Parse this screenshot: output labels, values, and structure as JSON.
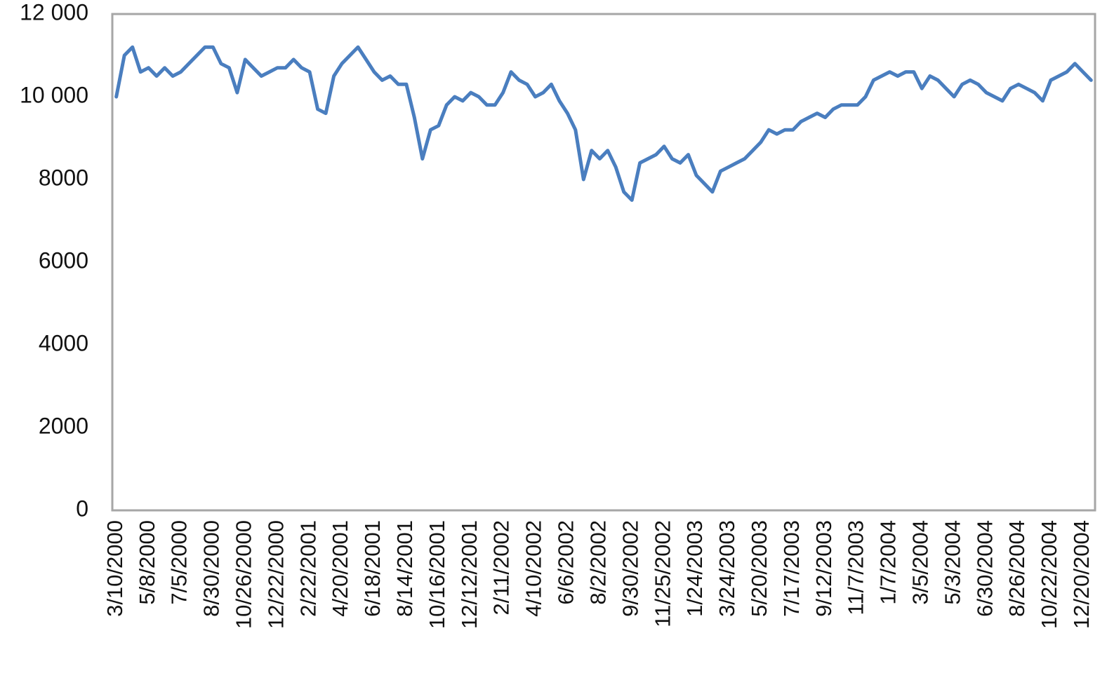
{
  "chart_data": {
    "type": "line",
    "categories": [
      "3/10/2000",
      null,
      null,
      null,
      "5/8/2000",
      null,
      null,
      null,
      "7/5/2000",
      null,
      null,
      null,
      "8/30/2000",
      null,
      null,
      null,
      "10/26/2000",
      null,
      null,
      null,
      "12/22/2000",
      null,
      null,
      null,
      "2/22/2001",
      null,
      null,
      null,
      "4/20/2001",
      null,
      null,
      null,
      "6/18/2001",
      null,
      null,
      null,
      "8/14/2001",
      null,
      null,
      null,
      "10/16/2001",
      null,
      null,
      null,
      "12/12/2001",
      null,
      null,
      null,
      "2/11/2002",
      null,
      null,
      null,
      "4/10/2002",
      null,
      null,
      null,
      "6/6/2002",
      null,
      null,
      null,
      "8/2/2002",
      null,
      null,
      null,
      "9/30/2002",
      null,
      null,
      null,
      "11/25/2002",
      null,
      null,
      null,
      "1/24/2003",
      null,
      null,
      null,
      "3/24/2003",
      null,
      null,
      null,
      "5/20/2003",
      null,
      null,
      null,
      "7/17/2003",
      null,
      null,
      null,
      "9/12/2003",
      null,
      null,
      null,
      "11/7/2003",
      null,
      null,
      null,
      "1/7/2004",
      null,
      null,
      null,
      "3/5/2004",
      null,
      null,
      null,
      "5/3/2004",
      null,
      null,
      null,
      "6/30/2004",
      null,
      null,
      null,
      "8/26/2004",
      null,
      null,
      null,
      "10/22/2004",
      null,
      null,
      null,
      "12/20/2004",
      null
    ],
    "values": [
      10000,
      11000,
      11200,
      10600,
      10700,
      10500,
      10700,
      10500,
      10600,
      10800,
      11000,
      11200,
      11200,
      10800,
      10700,
      10100,
      10900,
      10700,
      10500,
      10600,
      10700,
      10700,
      10900,
      10700,
      10600,
      9700,
      9600,
      10500,
      10800,
      11000,
      11200,
      10900,
      10600,
      10400,
      10500,
      10300,
      10300,
      9500,
      8500,
      9200,
      9300,
      9800,
      10000,
      9900,
      10100,
      10000,
      9800,
      9800,
      10100,
      10600,
      10400,
      10300,
      10000,
      10100,
      10300,
      9900,
      9600,
      9200,
      8000,
      8700,
      8500,
      8700,
      8300,
      7700,
      7500,
      8400,
      8500,
      8600,
      8800,
      8500,
      8400,
      8600,
      8100,
      7900,
      7700,
      8200,
      8300,
      8400,
      8500,
      8700,
      8900,
      9200,
      9100,
      9200,
      9200,
      9400,
      9500,
      9600,
      9500,
      9700,
      9800,
      9800,
      9800,
      10000,
      10400,
      10500,
      10600,
      10500,
      10600,
      10600,
      10200,
      10500,
      10400,
      10200,
      10000,
      10300,
      10400,
      10300,
      10100,
      10000,
      9900,
      10200,
      10300,
      10200,
      10100,
      9900,
      10400,
      10500,
      10600,
      10800,
      10600,
      10400
    ],
    "color": "#4a7ebf",
    "ylim": [
      0,
      12000
    ],
    "yticks": [
      0,
      2000,
      4000,
      6000,
      8000,
      {
        "value": 10000,
        "label": "10 000"
      },
      {
        "value": 12000,
        "label": "12 000"
      }
    ],
    "grid": false
  }
}
